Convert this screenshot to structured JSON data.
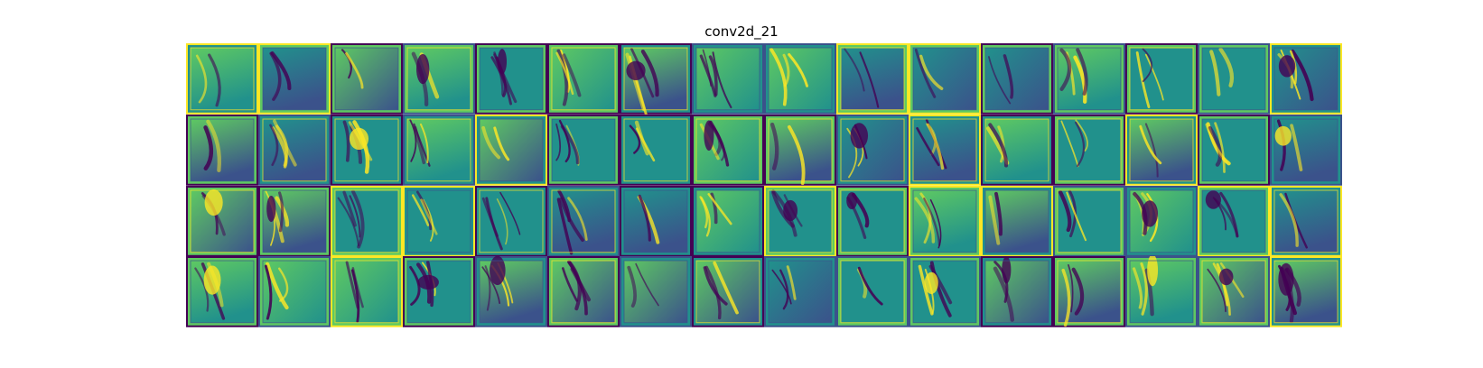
{
  "figure": {
    "title": "conv2d_21"
  },
  "grid": {
    "rows": 4,
    "cols": 16,
    "colormap": [
      "#440154",
      "#3b528b",
      "#21918c",
      "#5ec962",
      "#fde725"
    ]
  }
}
